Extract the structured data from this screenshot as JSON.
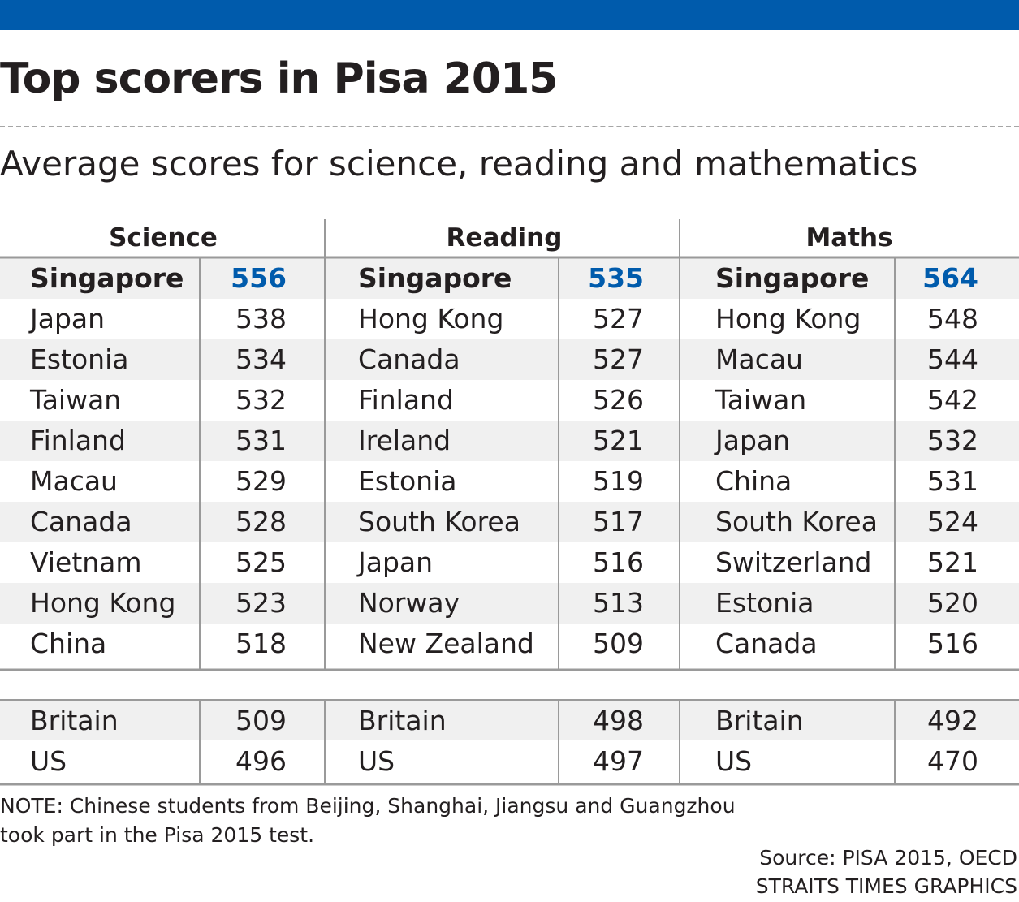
{
  "colors": {
    "top_bar": "#005bac",
    "highlight_value": "#005bac",
    "text": "#231f20",
    "row_stripe": "#f0f0f0",
    "table_lines": "#9a9a9a"
  },
  "header": {
    "title": "Top scorers in Pisa 2015",
    "subtitle": "Average scores for science, reading and mathematics"
  },
  "chart_data": {
    "type": "table",
    "title": "Top scorers in Pisa 2015",
    "subtitle": "Average scores for science, reading and mathematics",
    "columns": [
      {
        "name": "Science",
        "top": [
          {
            "country": "Singapore",
            "score": 556
          },
          {
            "country": "Japan",
            "score": 538
          },
          {
            "country": "Estonia",
            "score": 534
          },
          {
            "country": "Taiwan",
            "score": 532
          },
          {
            "country": "Finland",
            "score": 531
          },
          {
            "country": "Macau",
            "score": 529
          },
          {
            "country": "Canada",
            "score": 528
          },
          {
            "country": "Vietnam",
            "score": 525
          },
          {
            "country": "Hong Kong",
            "score": 523
          },
          {
            "country": "China",
            "score": 518
          }
        ],
        "others": [
          {
            "country": "Britain",
            "score": 509
          },
          {
            "country": "US",
            "score": 496
          }
        ]
      },
      {
        "name": "Reading",
        "top": [
          {
            "country": "Singapore",
            "score": 535
          },
          {
            "country": "Hong Kong",
            "score": 527
          },
          {
            "country": "Canada",
            "score": 527
          },
          {
            "country": "Finland",
            "score": 526
          },
          {
            "country": "Ireland",
            "score": 521
          },
          {
            "country": "Estonia",
            "score": 519
          },
          {
            "country": "South Korea",
            "score": 517
          },
          {
            "country": "Japan",
            "score": 516
          },
          {
            "country": "Norway",
            "score": 513
          },
          {
            "country": "New Zealand",
            "score": 509
          }
        ],
        "others": [
          {
            "country": "Britain",
            "score": 498
          },
          {
            "country": "US",
            "score": 497
          }
        ]
      },
      {
        "name": "Maths",
        "top": [
          {
            "country": "Singapore",
            "score": 564
          },
          {
            "country": "Hong Kong",
            "score": 548
          },
          {
            "country": "Macau",
            "score": 544
          },
          {
            "country": "Taiwan",
            "score": 542
          },
          {
            "country": "Japan",
            "score": 532
          },
          {
            "country": "China",
            "score": 531
          },
          {
            "country": "South Korea",
            "score": 524
          },
          {
            "country": "Switzerland",
            "score": 521
          },
          {
            "country": "Estonia",
            "score": 520
          },
          {
            "country": "Canada",
            "score": 516
          }
        ],
        "others": [
          {
            "country": "Britain",
            "score": 492
          },
          {
            "country": "US",
            "score": 470
          }
        ]
      }
    ],
    "highlight_country": "Singapore"
  },
  "footer": {
    "note_line1": "NOTE: Chinese students from Beijing, Shanghai, Jiangsu and Guangzhou",
    "note_line2": "took part in the Pisa 2015 test.",
    "source_line1": "Source: PISA 2015, OECD",
    "source_line2": "STRAITS TIMES GRAPHICS"
  }
}
